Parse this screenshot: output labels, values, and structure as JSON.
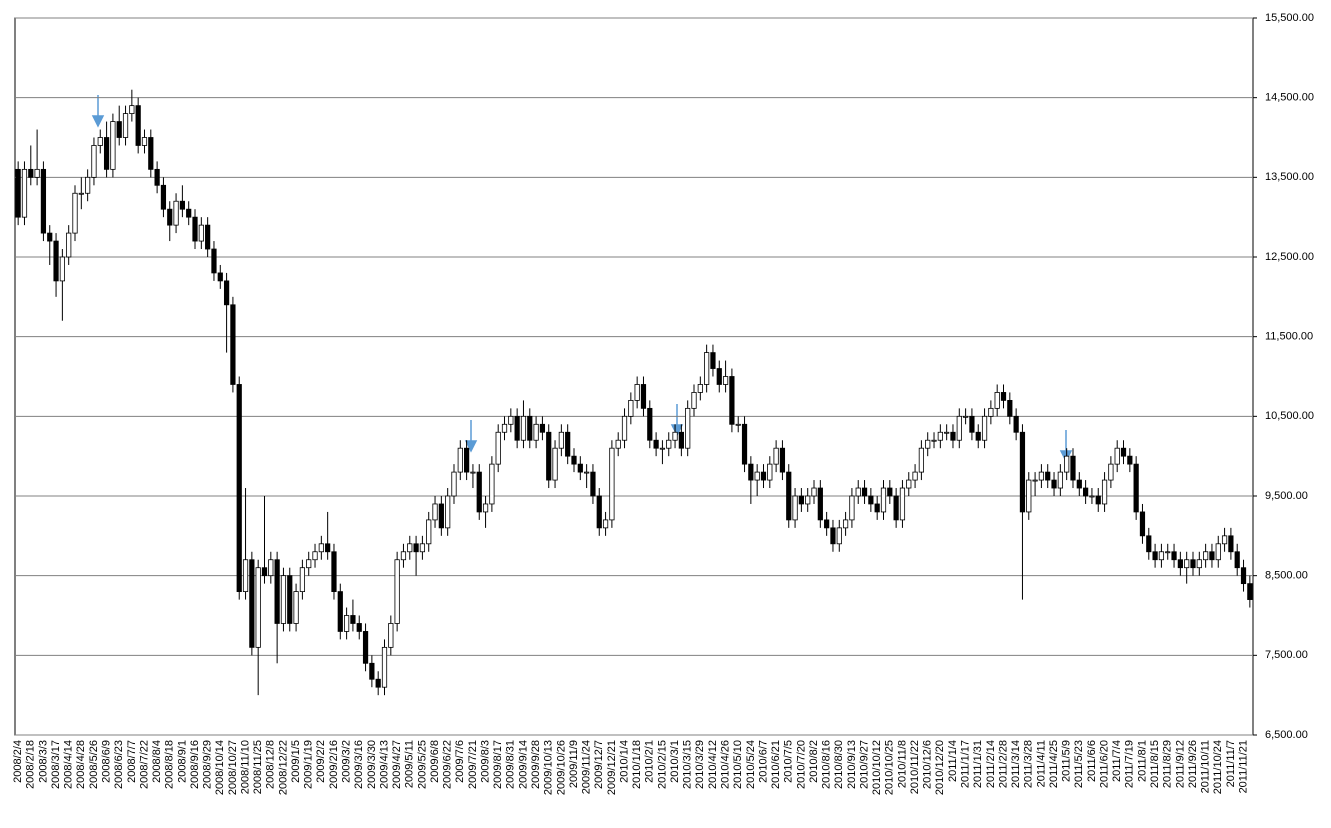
{
  "chart_data": {
    "type": "candlestick",
    "categories": [
      "2008/2/4",
      null,
      "2008/2/18",
      null,
      "2008/3/3",
      null,
      "2008/3/17",
      null,
      "2008/4/14",
      null,
      "2008/4/28",
      null,
      "2008/5/26",
      null,
      "2008/6/9",
      null,
      "2008/6/23",
      null,
      "2008/7/7",
      null,
      "2008/7/22",
      null,
      "2008/8/4",
      null,
      "2008/8/18",
      null,
      "2008/9/1",
      null,
      "2008/9/16",
      null,
      "2008/9/29",
      null,
      "2008/10/14",
      null,
      "2008/10/27",
      null,
      "2008/11/10",
      null,
      "2008/11/25",
      null,
      "2008/12/8",
      null,
      "2008/12/22",
      null,
      "2009/1/5",
      null,
      "2009/1/19",
      null,
      "2009/2/2",
      null,
      "2009/2/16",
      null,
      "2009/3/2",
      null,
      "2009/3/16",
      null,
      "2009/3/30",
      null,
      "2009/4/13",
      null,
      "2009/4/27",
      null,
      "2009/5/11",
      null,
      "2009/5/25",
      null,
      "2009/6/8",
      null,
      "2009/6/22",
      null,
      "2009/7/6",
      null,
      "2009/7/21",
      null,
      "2009/8/3",
      null,
      "2009/8/17",
      null,
      "2009/8/31",
      null,
      "2009/9/14",
      null,
      "2009/9/28",
      null,
      "2009/10/13",
      null,
      "2009/10/26",
      null,
      "2009/11/9",
      null,
      "2009/11/24",
      null,
      "2009/12/7",
      null,
      "2009/12/21",
      null,
      "2010/1/4",
      null,
      "2010/1/18",
      null,
      "2010/2/1",
      null,
      "2010/2/15",
      null,
      "2010/3/1",
      null,
      "2010/3/15",
      null,
      "2010/3/29",
      null,
      "2010/4/12",
      null,
      "2010/4/26",
      null,
      "2010/5/10",
      null,
      "2010/5/24",
      null,
      "2010/6/7",
      null,
      "2010/6/21",
      null,
      "2010/7/5",
      null,
      "2010/7/20",
      null,
      "2010/8/2",
      null,
      "2010/8/16",
      null,
      "2010/8/30",
      null,
      "2010/9/13",
      null,
      "2010/9/27",
      null,
      "2010/10/12",
      null,
      "2010/10/25",
      null,
      "2010/11/8",
      null,
      "2010/11/22",
      null,
      "2010/12/6",
      null,
      "2010/12/20",
      null,
      "2011/1/4",
      null,
      "2011/1/17",
      null,
      "2011/1/31",
      null,
      "2011/2/14",
      null,
      "2011/2/28",
      null,
      "2011/3/14",
      null,
      "2011/3/28",
      null,
      "2011/4/11",
      null,
      "2011/4/25",
      null,
      "2011/5/9",
      null,
      "2011/5/23",
      null,
      "2011/6/6",
      null,
      "2011/6/20",
      null,
      "2011/7/4",
      null,
      "2011/7/19",
      null,
      "2011/8/1",
      null,
      "2011/8/15",
      null,
      "2011/8/29",
      null,
      "2011/9/12",
      null,
      "2011/9/26",
      null,
      "2011/10/11",
      null,
      "2011/10/24",
      null,
      "2011/11/7",
      null,
      "2011/11/21",
      null
    ],
    "open": [
      13600,
      13000,
      13600,
      13500,
      13600,
      12800,
      12700,
      12200,
      12500,
      12800,
      13300,
      13300,
      13500,
      13900,
      14000,
      13600,
      14200,
      14000,
      14300,
      14400,
      13900,
      14000,
      13600,
      13400,
      13100,
      12900,
      13200,
      13100,
      13000,
      12700,
      12900,
      12600,
      12300,
      12200,
      11900,
      10900,
      8300,
      8700,
      7600,
      8600,
      8500,
      8700,
      7900,
      8500,
      7900,
      8300,
      8600,
      8700,
      8800,
      8900,
      8800,
      8300,
      7800,
      8000,
      7900,
      7800,
      7400,
      7200,
      7100,
      7600,
      7900,
      8700,
      8800,
      8900,
      8800,
      8900,
      9200,
      9400,
      9100,
      9500,
      9800,
      10100,
      9800,
      9800,
      9300,
      9400,
      9900,
      10300,
      10400,
      10500,
      10200,
      10500,
      10200,
      10400,
      10300,
      9700,
      10100,
      10300,
      10000,
      9900,
      9800,
      9800,
      9500,
      9100,
      9200,
      10100,
      10200,
      10500,
      10700,
      10900,
      10600,
      10200,
      10100,
      10100,
      10200,
      10300,
      10100,
      10600,
      10800,
      10900,
      11300,
      11100,
      10900,
      11000,
      10400,
      10400,
      9900,
      9700,
      9800,
      9700,
      9900,
      10100,
      9800,
      9200,
      9500,
      9400,
      9500,
      9600,
      9200,
      9100,
      8900,
      9100,
      9200,
      9500,
      9600,
      9500,
      9400,
      9300,
      9600,
      9500,
      9200,
      9600,
      9700,
      9800,
      10100,
      10200,
      10200,
      10300,
      10300,
      10200,
      10500,
      10500,
      10300,
      10200,
      10500,
      10600,
      10800,
      10700,
      10500,
      10300,
      9300,
      9700,
      9700,
      9800,
      9700,
      9600,
      9800,
      10000,
      9700,
      9600,
      9500,
      9500,
      9400,
      9700,
      9900,
      10100,
      10000,
      9900,
      9300,
      9000,
      8800,
      8700,
      8800,
      8800,
      8700,
      8600,
      8700,
      8600,
      8700,
      8800,
      8700,
      8900,
      9000,
      8800,
      8600,
      8400
    ],
    "high": [
      13700,
      13700,
      13900,
      14100,
      13700,
      12900,
      12800,
      12600,
      12900,
      13400,
      13500,
      13600,
      14000,
      14100,
      14200,
      14300,
      14400,
      14400,
      14600,
      14500,
      14100,
      14100,
      13700,
      13500,
      13200,
      13300,
      13400,
      13200,
      13100,
      13000,
      13000,
      12700,
      12400,
      12300,
      12000,
      11000,
      9600,
      8800,
      8700,
      9500,
      8800,
      8800,
      8600,
      8600,
      8400,
      8700,
      8800,
      8900,
      9000,
      9300,
      8900,
      8400,
      8100,
      8200,
      8000,
      7900,
      7500,
      7300,
      7700,
      8000,
      8800,
      8900,
      9000,
      9000,
      9000,
      9300,
      9500,
      9500,
      9600,
      9900,
      10200,
      10200,
      9900,
      9900,
      9500,
      10000,
      10400,
      10500,
      10600,
      10600,
      10700,
      10600,
      10500,
      10500,
      10400,
      10200,
      10400,
      10400,
      10100,
      10000,
      9900,
      9900,
      9600,
      9300,
      10200,
      10300,
      10600,
      10800,
      11000,
      11000,
      10700,
      10300,
      10200,
      10300,
      10400,
      10400,
      10700,
      10900,
      11000,
      11400,
      11400,
      11200,
      11200,
      11100,
      10500,
      10500,
      10000,
      9900,
      9900,
      10000,
      10200,
      10200,
      9900,
      9600,
      9600,
      9600,
      9700,
      9700,
      9300,
      9200,
      9200,
      9300,
      9600,
      9700,
      9700,
      9600,
      9500,
      9700,
      9700,
      9600,
      9700,
      9800,
      9900,
      10200,
      10300,
      10300,
      10400,
      10400,
      10400,
      10600,
      10600,
      10600,
      10400,
      10600,
      10700,
      10900,
      10900,
      10800,
      10600,
      10400,
      9800,
      9800,
      9900,
      9900,
      9800,
      9900,
      10100,
      10100,
      9800,
      9700,
      9600,
      9600,
      9800,
      10000,
      10200,
      10200,
      10100,
      10000,
      9400,
      9100,
      8900,
      8900,
      8900,
      8900,
      8800,
      8800,
      8800,
      8800,
      8900,
      8900,
      9000,
      9100,
      9100,
      8900,
      8700,
      8500
    ],
    "low": [
      12900,
      12900,
      13400,
      13400,
      12700,
      12400,
      12000,
      11700,
      12400,
      12700,
      13100,
      13200,
      13400,
      13800,
      13500,
      13500,
      13900,
      13900,
      14200,
      13800,
      13800,
      13500,
      13300,
      13000,
      12700,
      12800,
      13000,
      12900,
      12600,
      12600,
      12500,
      12200,
      12100,
      11300,
      10800,
      8200,
      8200,
      7500,
      7000,
      8400,
      8400,
      7400,
      7800,
      7800,
      7800,
      8200,
      8500,
      8600,
      8700,
      8700,
      8200,
      7700,
      7700,
      7800,
      7700,
      7300,
      7100,
      7000,
      7000,
      7500,
      7800,
      8600,
      8700,
      8500,
      8700,
      8800,
      9100,
      9000,
      9000,
      9400,
      9700,
      9700,
      9600,
      9200,
      9100,
      9300,
      9800,
      10200,
      10300,
      10100,
      10100,
      10100,
      10100,
      10200,
      9600,
      9600,
      10000,
      9900,
      9800,
      9700,
      9600,
      9400,
      9000,
      9000,
      9100,
      10000,
      10100,
      10400,
      10600,
      10500,
      10100,
      10000,
      9900,
      10000,
      10100,
      10000,
      10000,
      10500,
      10700,
      10800,
      11000,
      10800,
      10800,
      10300,
      10300,
      9800,
      9400,
      9500,
      9600,
      9600,
      9800,
      9700,
      9100,
      9100,
      9300,
      9300,
      9400,
      9100,
      9000,
      8800,
      8800,
      9000,
      9100,
      9400,
      9400,
      9300,
      9200,
      9200,
      9400,
      9100,
      9100,
      9500,
      9600,
      9700,
      10000,
      10100,
      10100,
      10200,
      10100,
      10100,
      10400,
      10200,
      10100,
      10100,
      10400,
      10500,
      10600,
      10400,
      10200,
      8200,
      9200,
      9500,
      9600,
      9600,
      9500,
      9500,
      9700,
      9600,
      9500,
      9400,
      9400,
      9300,
      9300,
      9600,
      9800,
      9900,
      9800,
      9200,
      8900,
      8700,
      8600,
      8600,
      8700,
      8600,
      8500,
      8400,
      8500,
      8500,
      8600,
      8600,
      8600,
      8800,
      8700,
      8500,
      8300,
      8100
    ],
    "close": [
      13000,
      13600,
      13500,
      13600,
      12800,
      12700,
      12200,
      12500,
      12800,
      13300,
      13300,
      13500,
      13900,
      14000,
      13600,
      14200,
      14000,
      14300,
      14400,
      13900,
      14000,
      13600,
      13400,
      13100,
      12900,
      13200,
      13100,
      13000,
      12700,
      12900,
      12600,
      12300,
      12200,
      11900,
      10900,
      8300,
      8700,
      7600,
      8600,
      8500,
      8700,
      7900,
      8500,
      7900,
      8300,
      8600,
      8700,
      8800,
      8900,
      8800,
      8300,
      7800,
      8000,
      7900,
      7800,
      7400,
      7200,
      7100,
      7600,
      7900,
      8700,
      8800,
      8900,
      8800,
      8900,
      9200,
      9400,
      9100,
      9500,
      9800,
      10100,
      9800,
      9800,
      9300,
      9400,
      9900,
      10300,
      10400,
      10500,
      10200,
      10500,
      10200,
      10400,
      10300,
      9700,
      10100,
      10300,
      10000,
      9900,
      9800,
      9800,
      9500,
      9100,
      9200,
      10100,
      10200,
      10500,
      10700,
      10900,
      10600,
      10200,
      10100,
      10100,
      10200,
      10300,
      10100,
      10600,
      10800,
      10900,
      11300,
      11100,
      10900,
      11000,
      10400,
      10400,
      9900,
      9700,
      9800,
      9700,
      9900,
      10100,
      9800,
      9200,
      9500,
      9400,
      9500,
      9600,
      9200,
      9100,
      8900,
      9100,
      9200,
      9500,
      9600,
      9500,
      9400,
      9300,
      9600,
      9500,
      9200,
      9600,
      9700,
      9800,
      10100,
      10200,
      10200,
      10300,
      10300,
      10200,
      10500,
      10500,
      10300,
      10200,
      10500,
      10600,
      10800,
      10700,
      10500,
      10300,
      9300,
      9700,
      9700,
      9800,
      9700,
      9600,
      9800,
      10000,
      9700,
      9600,
      9500,
      9500,
      9400,
      9700,
      9900,
      10100,
      10000,
      9900,
      9300,
      9000,
      8800,
      8700,
      8800,
      8800,
      8700,
      8600,
      8700,
      8600,
      8700,
      8800,
      8700,
      8900,
      9000,
      8800,
      8600,
      8400,
      8200
    ],
    "up_color": "#ffffff",
    "down_color": "#000000",
    "ylim": [
      6500,
      15500
    ],
    "yticks": [
      {
        "value": 6500,
        "label": "6,500.00"
      },
      {
        "value": 7500,
        "label": "7,500.00"
      },
      {
        "value": 8500,
        "label": "8,500.00"
      },
      {
        "value": 9500,
        "label": "9,500.00"
      },
      {
        "value": 10500,
        "label": "10,500.00"
      },
      {
        "value": 11500,
        "label": "11,500.00"
      },
      {
        "value": 12500,
        "label": "12,500.00"
      },
      {
        "value": 13500,
        "label": "13,500.00"
      },
      {
        "value": 14500,
        "label": "14,500.00"
      },
      {
        "value": 15500,
        "label": "15,500.00"
      }
    ],
    "grid": true
  }
}
